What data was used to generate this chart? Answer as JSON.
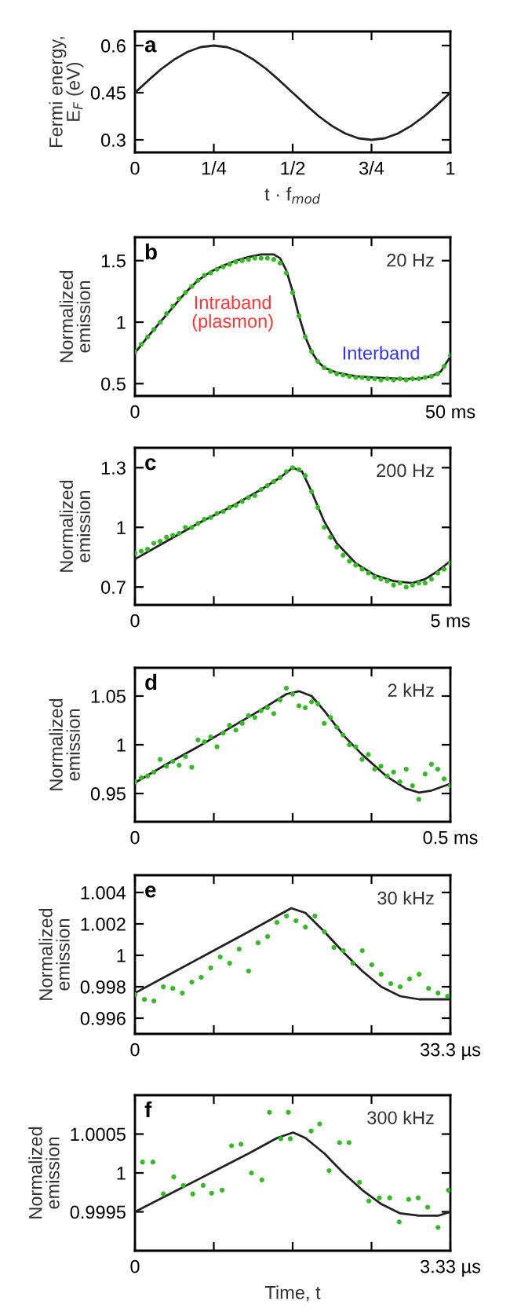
{
  "chart_data": [
    {
      "type": "line",
      "title": "a",
      "xlabel": "t · f$_{mod}$",
      "ylabel": "Fermi energy,\nE$_{F}$ (eV)",
      "xlim": [
        0,
        1
      ],
      "ylim": [
        0.26,
        0.645
      ],
      "xticks": [
        0,
        {
          "value": 0.25,
          "label": "1/4"
        },
        {
          "value": 0.5,
          "label": "1/2"
        },
        {
          "value": 0.75,
          "label": "3/4"
        },
        1
      ],
      "yticks": [
        0.3,
        0.45,
        0.6
      ],
      "series": [
        {
          "type": "line",
          "color": "#222222",
          "x": [
            0,
            0.042,
            0.083,
            0.125,
            0.167,
            0.208,
            0.25,
            0.292,
            0.333,
            0.375,
            0.417,
            0.458,
            0.5,
            0.542,
            0.583,
            0.625,
            0.667,
            0.708,
            0.75,
            0.792,
            0.833,
            0.875,
            0.917,
            0.958,
            1
          ],
          "values": [
            0.45,
            0.489,
            0.525,
            0.556,
            0.58,
            0.595,
            0.6,
            0.595,
            0.58,
            0.556,
            0.525,
            0.489,
            0.45,
            0.411,
            0.375,
            0.344,
            0.32,
            0.305,
            0.3,
            0.305,
            0.32,
            0.344,
            0.375,
            0.411,
            0.45
          ]
        }
      ]
    },
    {
      "type": "line",
      "title": "b",
      "ylabel": "Normalized\nemission",
      "xlim": [
        0,
        50
      ],
      "ylim": [
        0.4,
        1.69
      ],
      "xticks": [
        0,
        {
          "value": 12.5,
          "label": null
        },
        {
          "value": 25,
          "label": null
        },
        {
          "value": 37.5,
          "label": null
        },
        {
          "value": 50,
          "label": "50 ms"
        }
      ],
      "yticks": [
        0.5,
        1,
        1.5
      ],
      "annotations": [
        "20 Hz",
        "Intraband\n(plasmon)",
        "Interband"
      ],
      "series": [
        {
          "type": "scatter",
          "marker": "circle",
          "color": "#33bb22",
          "x": [
            0,
            1,
            2,
            3,
            4,
            5,
            6,
            7,
            8,
            9,
            10,
            11,
            12,
            13,
            14,
            15,
            16,
            17,
            18,
            19,
            20,
            21,
            22,
            23,
            24,
            25,
            26,
            27,
            28,
            29,
            30,
            31,
            32,
            33,
            34,
            35,
            36,
            37,
            38,
            39,
            40,
            41,
            42,
            43,
            44,
            45,
            46,
            47,
            48,
            49,
            50
          ],
          "values": [
            0.76,
            0.82,
            0.88,
            0.94,
            1.0,
            1.07,
            1.13,
            1.19,
            1.24,
            1.29,
            1.34,
            1.38,
            1.4,
            1.43,
            1.45,
            1.47,
            1.49,
            1.5,
            1.51,
            1.52,
            1.52,
            1.52,
            1.51,
            1.48,
            1.4,
            1.24,
            1.05,
            0.88,
            0.76,
            0.68,
            0.63,
            0.6,
            0.58,
            0.57,
            0.56,
            0.55,
            0.55,
            0.54,
            0.54,
            0.53,
            0.54,
            0.53,
            0.54,
            0.53,
            0.54,
            0.54,
            0.55,
            0.56,
            0.58,
            0.64,
            0.73
          ]
        },
        {
          "type": "line",
          "color": "#222222",
          "x": [
            0,
            2,
            4,
            6,
            8,
            10,
            12,
            14,
            16,
            18,
            20,
            22,
            23,
            24,
            25,
            26,
            27,
            28,
            29,
            30,
            32,
            35,
            38,
            42,
            45,
            47,
            48.5,
            50
          ],
          "values": [
            0.75,
            0.88,
            1.0,
            1.12,
            1.24,
            1.34,
            1.41,
            1.46,
            1.5,
            1.53,
            1.55,
            1.55,
            1.52,
            1.42,
            1.25,
            1.05,
            0.88,
            0.76,
            0.68,
            0.63,
            0.59,
            0.56,
            0.55,
            0.54,
            0.54,
            0.56,
            0.6,
            0.72
          ]
        }
      ]
    },
    {
      "type": "line",
      "title": "c",
      "ylabel": "Normalized\nemission",
      "xlim": [
        0,
        5
      ],
      "ylim": [
        0.61,
        1.4
      ],
      "xticks": [
        0,
        {
          "value": 1.25,
          "label": null
        },
        {
          "value": 2.5,
          "label": null
        },
        {
          "value": 3.75,
          "label": null
        },
        {
          "value": 5,
          "label": "5 ms"
        }
      ],
      "yticks": [
        0.7,
        1,
        1.3
      ],
      "annotations": [
        "200 Hz"
      ],
      "series": [
        {
          "type": "scatter",
          "marker": "circle",
          "color": "#33bb22",
          "x": [
            0,
            0.1,
            0.2,
            0.3,
            0.4,
            0.5,
            0.6,
            0.7,
            0.8,
            0.9,
            1.0,
            1.1,
            1.2,
            1.3,
            1.4,
            1.5,
            1.6,
            1.7,
            1.8,
            1.9,
            2.0,
            2.1,
            2.2,
            2.3,
            2.4,
            2.5,
            2.6,
            2.7,
            2.8,
            2.9,
            3.0,
            3.1,
            3.2,
            3.3,
            3.4,
            3.5,
            3.6,
            3.7,
            3.8,
            3.9,
            4.0,
            4.1,
            4.2,
            4.3,
            4.4,
            4.5,
            4.6,
            4.7,
            4.8,
            4.9,
            5.0
          ],
          "values": [
            0.87,
            0.88,
            0.89,
            0.92,
            0.93,
            0.95,
            0.96,
            0.97,
            1.0,
            1.0,
            1.02,
            1.04,
            1.05,
            1.07,
            1.08,
            1.1,
            1.11,
            1.13,
            1.15,
            1.16,
            1.19,
            1.21,
            1.23,
            1.25,
            1.28,
            1.3,
            1.29,
            1.26,
            1.18,
            1.1,
            1.0,
            0.95,
            0.9,
            0.86,
            0.83,
            0.81,
            0.79,
            0.77,
            0.75,
            0.74,
            0.73,
            0.71,
            0.72,
            0.7,
            0.71,
            0.72,
            0.72,
            0.74,
            0.77,
            0.79,
            0.82
          ]
        },
        {
          "type": "line",
          "color": "#222222",
          "x": [
            0,
            0.5,
            1,
            1.5,
            2,
            2.3,
            2.5,
            2.65,
            2.8,
            3,
            3.2,
            3.5,
            3.8,
            4.1,
            4.4,
            4.6,
            4.8,
            5
          ],
          "values": [
            0.84,
            0.93,
            1.02,
            1.1,
            1.19,
            1.25,
            1.3,
            1.28,
            1.18,
            1.03,
            0.92,
            0.82,
            0.76,
            0.73,
            0.72,
            0.74,
            0.78,
            0.83
          ]
        }
      ]
    },
    {
      "type": "line",
      "title": "d",
      "ylabel": "Normalized\nemission",
      "xlim": [
        0,
        0.5
      ],
      "ylim": [
        0.921,
        1.079
      ],
      "xticks": [
        0,
        {
          "value": 0.125,
          "label": null
        },
        {
          "value": 0.25,
          "label": null
        },
        {
          "value": 0.375,
          "label": null
        },
        {
          "value": 0.5,
          "label": "0.5 ms"
        }
      ],
      "yticks": [
        0.95,
        1,
        1.05
      ],
      "annotations": [
        "2 kHz"
      ],
      "series": [
        {
          "type": "scatter",
          "marker": "circle",
          "color": "#33bb22",
          "x": [
            0,
            0.01,
            0.02,
            0.03,
            0.04,
            0.05,
            0.06,
            0.07,
            0.08,
            0.09,
            0.1,
            0.11,
            0.12,
            0.13,
            0.14,
            0.15,
            0.16,
            0.17,
            0.18,
            0.19,
            0.2,
            0.21,
            0.22,
            0.23,
            0.24,
            0.25,
            0.26,
            0.27,
            0.28,
            0.29,
            0.3,
            0.31,
            0.32,
            0.33,
            0.34,
            0.35,
            0.36,
            0.37,
            0.38,
            0.39,
            0.4,
            0.41,
            0.42,
            0.43,
            0.44,
            0.45,
            0.46,
            0.47,
            0.48,
            0.49,
            0.5
          ],
          "values": [
            0.962,
            0.966,
            0.968,
            0.972,
            0.985,
            0.978,
            0.983,
            0.979,
            0.988,
            0.977,
            1.005,
            1.003,
            1.008,
            0.998,
            1.012,
            1.02,
            1.015,
            1.022,
            1.03,
            1.028,
            1.035,
            1.038,
            1.032,
            1.046,
            1.058,
            1.052,
            1.04,
            1.038,
            1.044,
            1.042,
            1.022,
            1.028,
            1.018,
            1.01,
            1.0,
            0.998,
            0.985,
            0.99,
            0.975,
            0.978,
            0.968,
            0.972,
            0.962,
            0.975,
            0.958,
            0.944,
            0.97,
            0.98,
            0.975,
            0.965,
            0.958
          ]
        },
        {
          "type": "line",
          "color": "#222222",
          "x": [
            0,
            0.05,
            0.1,
            0.15,
            0.2,
            0.24,
            0.26,
            0.28,
            0.3,
            0.33,
            0.36,
            0.4,
            0.43,
            0.45,
            0.47,
            0.5
          ],
          "values": [
            0.961,
            0.98,
            0.998,
            1.017,
            1.036,
            1.052,
            1.055,
            1.05,
            1.035,
            1.01,
            0.99,
            0.967,
            0.955,
            0.951,
            0.953,
            0.96
          ]
        }
      ]
    },
    {
      "type": "line",
      "title": "e",
      "ylabel": "Normalized\nemission",
      "xlim": [
        0,
        33.3
      ],
      "ylim": [
        0.995,
        1.0051
      ],
      "xticks": [
        0,
        {
          "value": 8.325,
          "label": null
        },
        {
          "value": 16.65,
          "label": null
        },
        {
          "value": 24.975,
          "label": null
        },
        {
          "value": 33.3,
          "label": "33.3 µs"
        }
      ],
      "yticks": [
        0.996,
        0.998,
        1,
        1.002,
        1.004
      ],
      "annotations": [
        "30 kHz"
      ],
      "series": [
        {
          "type": "scatter",
          "marker": "circle",
          "color": "#33bb22",
          "x": [
            0,
            1,
            2,
            3,
            4,
            5,
            6,
            7,
            8,
            9,
            10,
            11,
            12,
            13,
            14,
            15,
            16,
            17,
            18,
            19,
            20,
            21,
            22,
            23,
            24,
            25,
            26,
            27,
            28,
            29,
            30,
            31,
            32,
            33
          ],
          "values": [
            0.9975,
            0.9972,
            0.9971,
            0.998,
            0.9979,
            0.9976,
            0.9983,
            0.9986,
            0.9992,
            0.9999,
            0.9995,
            1.0004,
            0.999,
            1.0008,
            1.0012,
            1.0021,
            1.0025,
            1.0022,
            1.0018,
            1.0025,
            1.0015,
            1.0005,
            1.0003,
            0.9995,
            1.0003,
            0.9994,
            0.9988,
            0.9982,
            0.998,
            0.9985,
            0.9988,
            0.9979,
            0.9976,
            0.9974
          ]
        },
        {
          "type": "line",
          "color": "#222222",
          "x": [
            0,
            4,
            8,
            12,
            15,
            16.5,
            18,
            20,
            22,
            24,
            26,
            28,
            30,
            33.3
          ],
          "values": [
            0.9976,
            0.9989,
            1.0002,
            1.0015,
            1.0025,
            1.003,
            1.0027,
            1.0015,
            1.0002,
            0.999,
            0.998,
            0.9974,
            0.9972,
            0.9972
          ]
        }
      ]
    },
    {
      "type": "line",
      "title": "f",
      "xlabel": "Time, t",
      "ylabel": "Normalized\nemission",
      "xlim": [
        0,
        3.33
      ],
      "ylim": [
        0.999,
        1.001
      ],
      "xticks": [
        0,
        {
          "value": 0.8325,
          "label": null
        },
        {
          "value": 1.665,
          "label": null
        },
        {
          "value": 2.4975,
          "label": null
        },
        {
          "value": 3.33,
          "label": "3.33 µs"
        }
      ],
      "yticks": [
        0.9995,
        1,
        1.0005
      ],
      "annotations": [
        "300 kHz"
      ],
      "series": [
        {
          "type": "scatter",
          "marker": "circle",
          "color": "#33bb22",
          "x": [
            0.08,
            0.19,
            0.3,
            0.41,
            0.51,
            0.61,
            0.72,
            0.81,
            0.92,
            1.02,
            1.12,
            1.23,
            1.34,
            1.42,
            1.54,
            1.62,
            1.64,
            1.86,
            1.95,
            2.05,
            2.16,
            2.26,
            2.37,
            2.47,
            2.58,
            2.69,
            2.79,
            2.89,
            2.99,
            3.09,
            3.2,
            3.31
          ],
          "values": [
            1.00014,
            1.00014,
            0.99973,
            0.99995,
            0.99984,
            0.99973,
            0.99984,
            0.99974,
            0.99978,
            1.00035,
            1.00037,
            1.0,
            0.99991,
            1.00078,
            1.00044,
            1.00078,
            1.00044,
            1.00054,
            1.00063,
            1.00003,
            1.00039,
            1.00039,
            0.99988,
            0.99964,
            0.99968,
            0.99968,
            0.99937,
            0.99966,
            0.99968,
            0.99956,
            0.9993,
            0.99978
          ]
        },
        {
          "type": "line",
          "color": "#222222",
          "x": [
            0,
            0.4,
            0.8,
            1.2,
            1.5,
            1.67,
            1.8,
            2.0,
            2.2,
            2.4,
            2.6,
            2.8,
            3.0,
            3.2,
            3.33
          ],
          "values": [
            0.9995,
            0.99975,
            1.0,
            1.00025,
            1.00045,
            1.00052,
            1.00045,
            1.00025,
            1.0,
            0.99978,
            0.9996,
            0.99948,
            0.99945,
            0.99945,
            0.9995
          ]
        }
      ]
    }
  ]
}
